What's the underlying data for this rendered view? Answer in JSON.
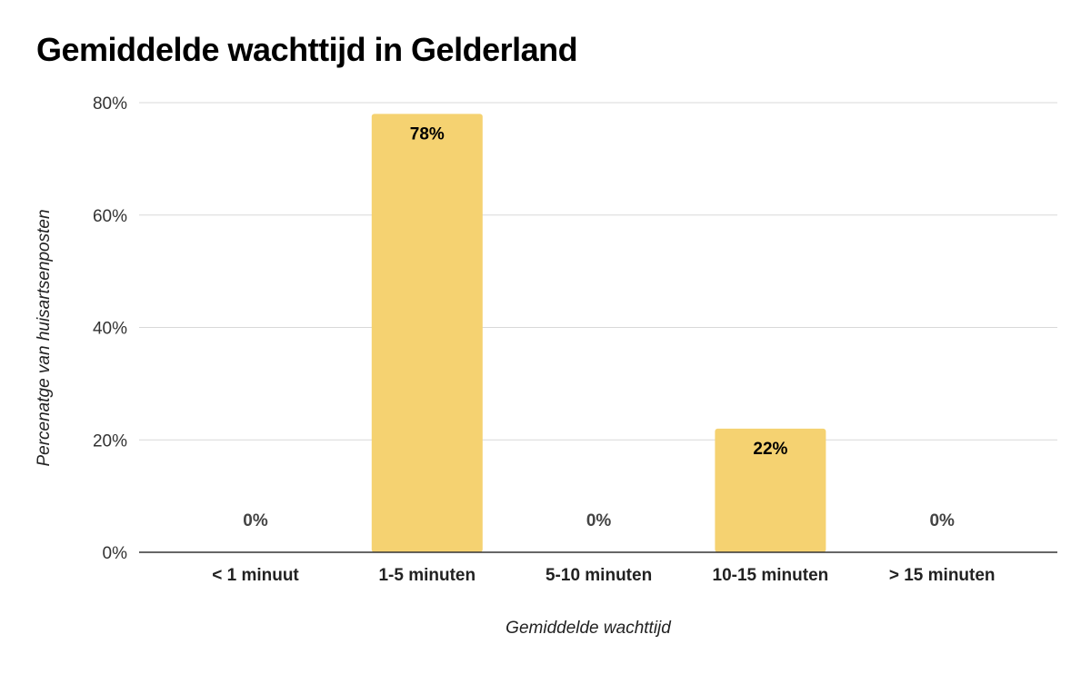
{
  "chart_data": {
    "type": "bar",
    "title": "Gemiddelde wachttijd in Gelderland",
    "xlabel": "Gemiddelde wachttijd",
    "ylabel": "Percenatge van huisartsenposten",
    "categories": [
      "< 1 minuut",
      "1-5 minuten",
      "5-10 minuten",
      "10-15 minuten",
      "> 15 minuten"
    ],
    "values": [
      0,
      78,
      0,
      22,
      0
    ],
    "data_labels": [
      "0%",
      "78%",
      "0%",
      "22%",
      "0%"
    ],
    "ylim": [
      0,
      80
    ],
    "yticks": [
      0,
      20,
      40,
      60,
      80
    ],
    "ytick_labels": [
      "0%",
      "20%",
      "40%",
      "60%",
      "80%"
    ],
    "grid": true,
    "bar_color": "#f5d271"
  }
}
